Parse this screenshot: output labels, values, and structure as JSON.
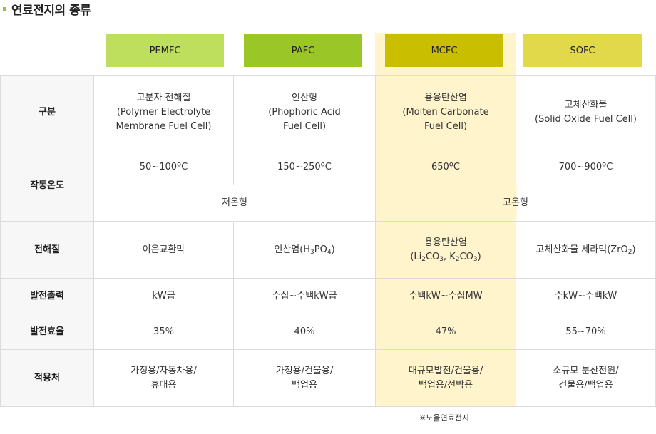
{
  "title": "연료전지의 종류",
  "columns": [
    "PEMFC",
    "PAFC",
    "MCFC",
    "SOFC"
  ],
  "colors": {
    "pemfc_header": "#bede5e",
    "pafc_header": "#9bc627",
    "mcfc_header": "#c9bf00",
    "sofc_header": "#e2d94a",
    "mcfc_highlight": "#fff4cc",
    "row_header_bg": "#f7f7f7",
    "border": "#dcdcdc",
    "title_bullet": "#8cc63f"
  },
  "rows": {
    "type": {
      "label": "구분",
      "pemfc": [
        "고분자 전해질",
        "(Polymer Electrolyte",
        "Membrane Fuel Cell)"
      ],
      "pafc": [
        "인산형",
        "(Phophoric Acid",
        "Fuel Cell)"
      ],
      "mcfc": [
        "용융탄산염",
        "(Molten Carbonate",
        "Fuel Cell)"
      ],
      "sofc": [
        "고체산화물",
        "(Solid Oxide Fuel Cell)"
      ]
    },
    "temp": {
      "label": "작동온도",
      "pemfc": "50~100ºC",
      "pafc": "150~250ºC",
      "mcfc": "650ºC",
      "sofc": "700~900ºC",
      "low_group": "저온형",
      "high_group": "고온형"
    },
    "electrolyte": {
      "label": "전해질",
      "pemfc": "이온교환막",
      "pafc": {
        "prefix": "인산염(H",
        "sub1": "3",
        "mid": "PO",
        "sub2": "4",
        "suffix": ")"
      },
      "mcfc": {
        "line1": "용융탄산염",
        "open": "(Li",
        "sub1": "2",
        "co_a": "CO",
        "sub2": "3",
        "sep": ",  K",
        "sub3": "2",
        "co_b": "CO",
        "sub4": "3",
        "close": ")"
      },
      "sofc": {
        "prefix": "고체산화물 세라믹(ZrO",
        "sub": "2",
        "suffix": ")"
      }
    },
    "output": {
      "label": "발전출력",
      "pemfc": "kW급",
      "pafc": "수십~수백kW급",
      "mcfc": "수백kW~수십MW",
      "sofc": "수kW~수백kW"
    },
    "efficiency": {
      "label": "발전효율",
      "pemfc": "35%",
      "pafc": "40%",
      "mcfc": "47%",
      "sofc": "55~70%"
    },
    "application": {
      "label": "적용처",
      "pemfc": [
        "가정용/자동차용/",
        "휴대용"
      ],
      "pafc": [
        "가정용/건물용/",
        "백업용"
      ],
      "mcfc": [
        "대규모발전/건물용/",
        "백업용/선박용"
      ],
      "sofc": [
        "소규모 분산전원/",
        "건물용/백업용"
      ]
    }
  },
  "footnote": "※노을연료전지"
}
